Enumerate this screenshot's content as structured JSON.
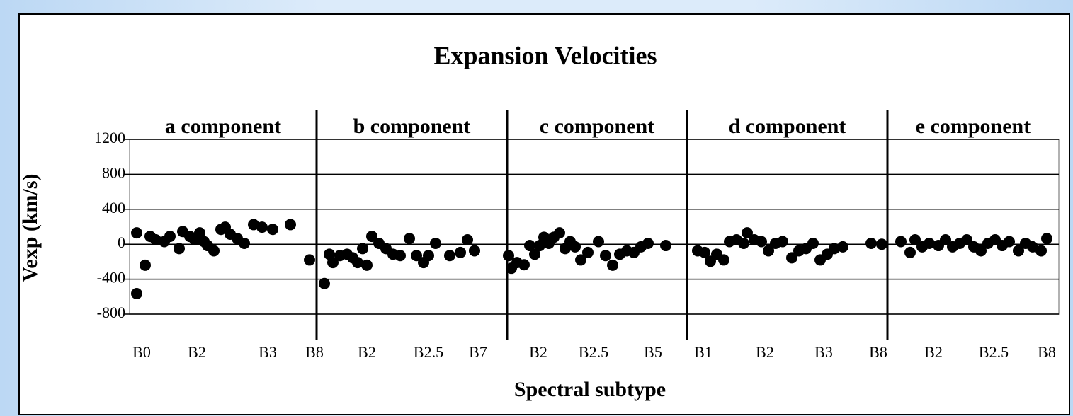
{
  "chart_data": {
    "type": "scatter",
    "title": "Expansion Velocities",
    "xlabel": "Spectral subtype",
    "ylabel": "Vexp (km/s)",
    "components": [
      "a component",
      "b component",
      "c component",
      "d component",
      "e component"
    ],
    "dividers": [
      264,
      533,
      787,
      1070
    ],
    "xlim": [
      0,
      1312
    ],
    "ylim": [
      -800,
      1200
    ],
    "yticks": [
      1200,
      800,
      400,
      0,
      -400,
      -800
    ],
    "xticks": [
      {
        "value": 17,
        "label": "B0"
      },
      {
        "value": 95,
        "label": "B2"
      },
      {
        "value": 195,
        "label": "B3"
      },
      {
        "value": 261,
        "label": "B8"
      },
      {
        "value": 335,
        "label": "B2"
      },
      {
        "value": 422,
        "label": "B2.5"
      },
      {
        "value": 492,
        "label": "B7"
      },
      {
        "value": 577,
        "label": "B2"
      },
      {
        "value": 655,
        "label": "B2.5"
      },
      {
        "value": 739,
        "label": "B5"
      },
      {
        "value": 810,
        "label": "B1"
      },
      {
        "value": 897,
        "label": "B2"
      },
      {
        "value": 980,
        "label": "B3"
      },
      {
        "value": 1057,
        "label": "B8"
      },
      {
        "value": 1135,
        "label": "B2"
      },
      {
        "value": 1220,
        "label": "B2.5"
      },
      {
        "value": 1295,
        "label": "B8"
      }
    ],
    "grid": true,
    "color": "#000000",
    "x": [
      10,
      22,
      29,
      37,
      49,
      57,
      70,
      75,
      85,
      92,
      99,
      105,
      110,
      119,
      129,
      135,
      142,
      152,
      162,
      175,
      187,
      202,
      227,
      10,
      254,
      275,
      282,
      287,
      297,
      307,
      315,
      322,
      329,
      335,
      342,
      352,
      362,
      372,
      382,
      395,
      405,
      415,
      422,
      432,
      452,
      467,
      477,
      487,
      535,
      539,
      547,
      557,
      565,
      572,
      579,
      585,
      592,
      599,
      607,
      615,
      622,
      629,
      637,
      647,
      662,
      672,
      682,
      692,
      702,
      712,
      722,
      732,
      757,
      802,
      812,
      820,
      829,
      839,
      847,
      857,
      867,
      872,
      882,
      892,
      902,
      912,
      922,
      935,
      945,
      955,
      965,
      975,
      985,
      995,
      1007,
      1047,
      1062,
      1089,
      1102,
      1109,
      1119,
      1129,
      1142,
      1152,
      1162,
      1172,
      1182,
      1192,
      1202,
      1212,
      1222,
      1232,
      1242,
      1255,
      1265,
      1275,
      1287,
      1295
    ],
    "values": [
      130,
      -240,
      90,
      50,
      30,
      90,
      -50,
      145,
      90,
      50,
      130,
      30,
      -15,
      -75,
      170,
      195,
      115,
      65,
      10,
      225,
      195,
      170,
      225,
      -565,
      -180,
      -450,
      -115,
      -210,
      -130,
      -115,
      -155,
      -210,
      -50,
      -240,
      90,
      10,
      -50,
      -115,
      -130,
      65,
      -130,
      -210,
      -130,
      10,
      -130,
      -95,
      50,
      -75,
      -130,
      -275,
      -210,
      -235,
      -15,
      -115,
      -15,
      80,
      10,
      80,
      130,
      -50,
      30,
      -30,
      -180,
      -95,
      30,
      -130,
      -240,
      -115,
      -75,
      -95,
      -30,
      10,
      -15,
      -75,
      -95,
      -195,
      -115,
      -180,
      30,
      50,
      10,
      130,
      50,
      30,
      -75,
      10,
      30,
      -155,
      -75,
      -50,
      10,
      -180,
      -115,
      -50,
      -30,
      10,
      0,
      30,
      -95,
      50,
      -30,
      10,
      -15,
      50,
      -30,
      10,
      50,
      -30,
      -75,
      10,
      50,
      -15,
      30,
      -75,
      10,
      -30,
      -75,
      65
    ]
  }
}
